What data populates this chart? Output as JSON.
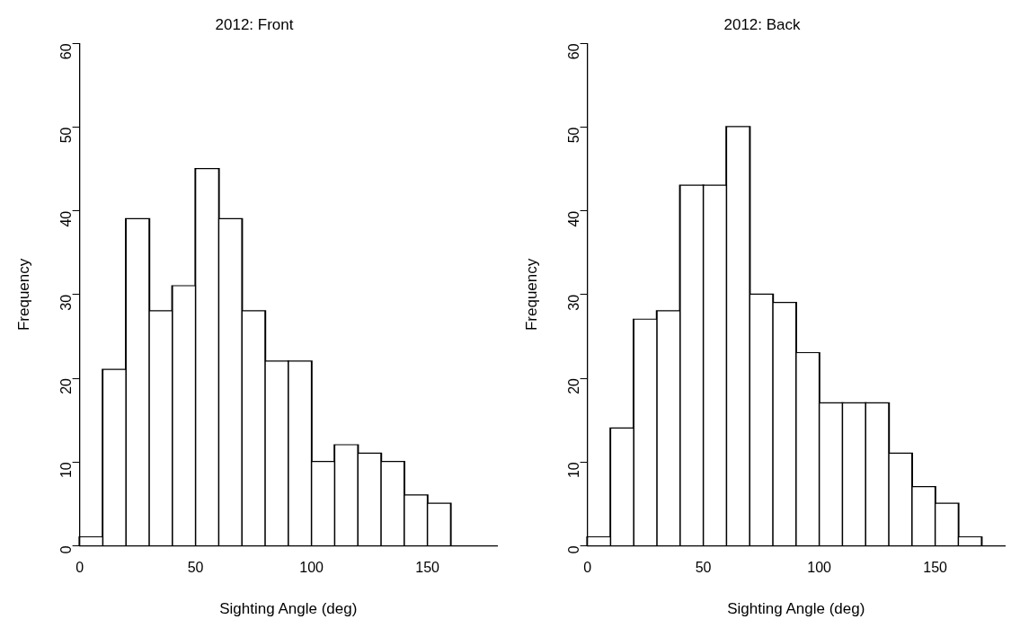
{
  "chart_data": [
    {
      "type": "histogram",
      "title": "2012: Front",
      "xlabel": "Sighting Angle (deg)",
      "ylabel": "Frequency",
      "bins": [
        0,
        10,
        20,
        30,
        40,
        50,
        60,
        70,
        80,
        90,
        100,
        110,
        120,
        130,
        140,
        150,
        160
      ],
      "values": [
        1,
        21,
        39,
        28,
        31,
        45,
        39,
        28,
        22,
        22,
        10,
        12,
        11,
        10,
        6,
        5
      ],
      "color": "#ffffff",
      "xlim": [
        0,
        180
      ],
      "xticks": [
        0,
        50,
        100,
        150
      ],
      "ylim": [
        0,
        60
      ],
      "yticks": [
        0,
        10,
        20,
        30,
        40,
        50,
        60
      ],
      "grid": false,
      "legend": false
    },
    {
      "type": "histogram",
      "title": "2012: Back",
      "xlabel": "Sighting Angle (deg)",
      "ylabel": "Frequency",
      "bins": [
        0,
        10,
        20,
        30,
        40,
        50,
        60,
        70,
        80,
        90,
        100,
        110,
        120,
        130,
        140,
        150,
        160,
        170
      ],
      "values": [
        1,
        14,
        27,
        28,
        43,
        43,
        50,
        30,
        29,
        23,
        17,
        17,
        17,
        11,
        7,
        5,
        1
      ],
      "color": "#ffffff",
      "xlim": [
        0,
        180
      ],
      "xticks": [
        0,
        50,
        100,
        150
      ],
      "ylim": [
        0,
        60
      ],
      "yticks": [
        0,
        10,
        20,
        30,
        40,
        50,
        60
      ],
      "grid": false,
      "legend": false
    }
  ]
}
